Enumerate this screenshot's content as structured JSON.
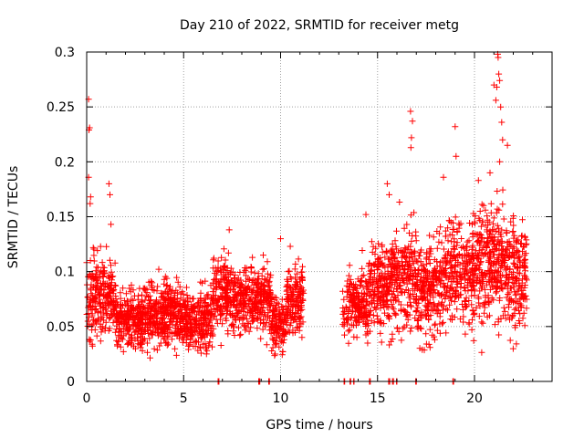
{
  "chart_data": {
    "type": "scatter",
    "title": "Day 210 of 2022, SRMTID for receiver metg",
    "xlabel": "GPS time / hours",
    "ylabel": "SRMTID / TECUs",
    "xlim": [
      0,
      24
    ],
    "ylim": [
      0,
      0.3
    ],
    "x_ticks": [
      0,
      5,
      10,
      15,
      20
    ],
    "x_tick_labels": [
      "0",
      "5",
      "10",
      "15",
      "20"
    ],
    "y_ticks": [
      0,
      0.05,
      0.1,
      0.15,
      0.2,
      0.25,
      0.3
    ],
    "y_tick_labels": [
      "0",
      "0.05",
      "0.1",
      "0.15",
      "0.2",
      "0.25",
      "0.3"
    ],
    "grid": true,
    "marker": "+",
    "series": [
      {
        "name": "SRMTID",
        "color": "#ff0000",
        "segments": [
          {
            "x_range": [
              0.0,
              0.4
            ],
            "mean": 0.07,
            "spread": 0.028,
            "density": 50
          },
          {
            "x_range": [
              0.4,
              1.5
            ],
            "mean": 0.078,
            "spread": 0.022,
            "density": 55
          },
          {
            "x_range": [
              1.5,
              3.0
            ],
            "mean": 0.057,
            "spread": 0.016,
            "density": 60
          },
          {
            "x_range": [
              3.0,
              5.0
            ],
            "mean": 0.06,
            "spread": 0.018,
            "density": 60
          },
          {
            "x_range": [
              5.0,
              6.5
            ],
            "mean": 0.055,
            "spread": 0.018,
            "density": 55
          },
          {
            "x_range": [
              6.5,
              7.5
            ],
            "mean": 0.08,
            "spread": 0.022,
            "density": 55
          },
          {
            "x_range": [
              7.5,
              9.5
            ],
            "mean": 0.075,
            "spread": 0.018,
            "density": 55
          },
          {
            "x_range": [
              9.5,
              10.3
            ],
            "mean": 0.052,
            "spread": 0.015,
            "density": 55
          },
          {
            "x_range": [
              10.3,
              11.2
            ],
            "mean": 0.075,
            "spread": 0.022,
            "density": 55
          },
          {
            "x_range": [
              13.2,
              13.5
            ],
            "mean": 0.065,
            "spread": 0.015,
            "density": 30
          },
          {
            "x_range": [
              13.5,
              14.5
            ],
            "mean": 0.07,
            "spread": 0.02,
            "density": 55
          },
          {
            "x_range": [
              14.5,
              15.5
            ],
            "mean": 0.085,
            "spread": 0.025,
            "density": 55
          },
          {
            "x_range": [
              15.5,
              17.0
            ],
            "mean": 0.095,
            "spread": 0.03,
            "density": 55
          },
          {
            "x_range": [
              17.0,
              18.5
            ],
            "mean": 0.085,
            "spread": 0.028,
            "density": 55
          },
          {
            "x_range": [
              18.5,
              20.0
            ],
            "mean": 0.1,
            "spread": 0.03,
            "density": 55
          },
          {
            "x_range": [
              20.0,
              21.5
            ],
            "mean": 0.11,
            "spread": 0.035,
            "density": 60
          },
          {
            "x_range": [
              21.5,
              22.7
            ],
            "mean": 0.095,
            "spread": 0.035,
            "density": 55
          }
        ],
        "outliers": [
          {
            "x": 0.1,
            "y": 0.257
          },
          {
            "x": 0.15,
            "y": 0.231
          },
          {
            "x": 0.12,
            "y": 0.229
          },
          {
            "x": 0.1,
            "y": 0.186
          },
          {
            "x": 0.2,
            "y": 0.168
          },
          {
            "x": 0.18,
            "y": 0.162
          },
          {
            "x": 1.15,
            "y": 0.18
          },
          {
            "x": 1.2,
            "y": 0.17
          },
          {
            "x": 1.25,
            "y": 0.143
          },
          {
            "x": 7.35,
            "y": 0.138
          },
          {
            "x": 10.0,
            "y": 0.13
          },
          {
            "x": 10.5,
            "y": 0.123
          },
          {
            "x": 16.7,
            "y": 0.246
          },
          {
            "x": 16.8,
            "y": 0.237
          },
          {
            "x": 16.75,
            "y": 0.222
          },
          {
            "x": 16.72,
            "y": 0.213
          },
          {
            "x": 19.0,
            "y": 0.232
          },
          {
            "x": 19.05,
            "y": 0.205
          },
          {
            "x": 21.2,
            "y": 0.298
          },
          {
            "x": 21.22,
            "y": 0.295
          },
          {
            "x": 21.25,
            "y": 0.28
          },
          {
            "x": 21.15,
            "y": 0.268
          },
          {
            "x": 21.0,
            "y": 0.27
          },
          {
            "x": 21.3,
            "y": 0.274
          },
          {
            "x": 21.35,
            "y": 0.25
          },
          {
            "x": 21.1,
            "y": 0.256
          },
          {
            "x": 21.4,
            "y": 0.236
          },
          {
            "x": 21.45,
            "y": 0.22
          },
          {
            "x": 21.3,
            "y": 0.2
          },
          {
            "x": 21.7,
            "y": 0.215
          },
          {
            "x": 15.5,
            "y": 0.18
          },
          {
            "x": 15.6,
            "y": 0.17
          },
          {
            "x": 18.4,
            "y": 0.186
          },
          {
            "x": 14.4,
            "y": 0.152
          },
          {
            "x": 20.2,
            "y": 0.183
          },
          {
            "x": 20.8,
            "y": 0.19
          }
        ],
        "zero_points": [
          6.8,
          8.9,
          9.4,
          13.3,
          13.6,
          13.8,
          14.6,
          15.6,
          15.8,
          16.0,
          17.0,
          18.9
        ]
      }
    ]
  }
}
